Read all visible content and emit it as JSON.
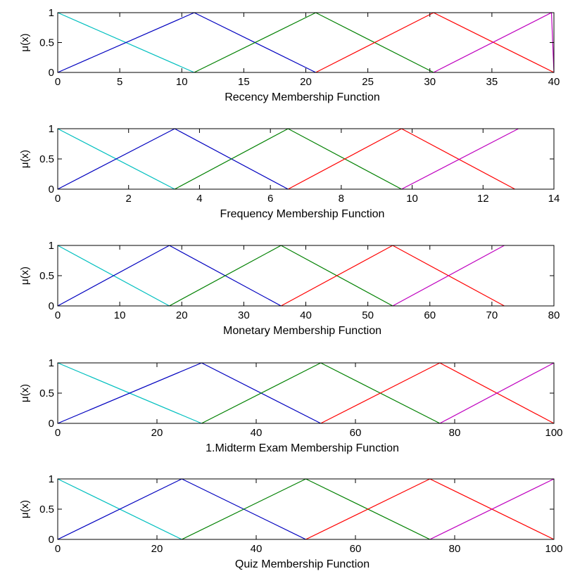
{
  "chart_data": [
    {
      "type": "line",
      "title": "",
      "xlabel": "Recency Membership Function",
      "ylabel": "μ(x)",
      "xlim": [
        0,
        40
      ],
      "ylim": [
        0,
        1
      ],
      "xticks": [
        0,
        5,
        10,
        15,
        20,
        25,
        30,
        35,
        40
      ],
      "xtick_labels": [
        "0",
        "5",
        "10",
        "15",
        "20",
        "25",
        "30",
        "35",
        "40"
      ],
      "yticks": [
        0,
        0.5,
        1
      ],
      "ytick_labels": [
        "0",
        "0.5",
        "1"
      ],
      "grid": false,
      "series": [
        {
          "color": "#00bfbf",
          "x": [
            0,
            11
          ],
          "y": [
            1,
            0
          ]
        },
        {
          "color": "#0000bf",
          "x": [
            0,
            11,
            20.8
          ],
          "y": [
            0,
            1,
            0
          ]
        },
        {
          "color": "#008000",
          "x": [
            11,
            20.8,
            30.3
          ],
          "y": [
            0,
            1,
            0
          ]
        },
        {
          "color": "#ff0000",
          "x": [
            20.8,
            30.3,
            40
          ],
          "y": [
            0,
            1,
            0
          ]
        },
        {
          "color": "#bf00bf",
          "x": [
            30.3,
            39.8,
            40
          ],
          "y": [
            0,
            1,
            0
          ]
        }
      ]
    },
    {
      "type": "line",
      "title": "",
      "xlabel": "Frequency Membership Function",
      "ylabel": "μ(x)",
      "xlim": [
        0,
        14
      ],
      "ylim": [
        0,
        1
      ],
      "xticks": [
        0,
        2,
        4,
        6,
        8,
        10,
        12,
        14
      ],
      "xtick_labels": [
        "0",
        "2",
        "4",
        "6",
        "8",
        "10",
        "12",
        "14"
      ],
      "yticks": [
        0,
        0.5,
        1
      ],
      "ytick_labels": [
        "0",
        "0.5",
        "1"
      ],
      "grid": false,
      "series": [
        {
          "color": "#00bfbf",
          "x": [
            0,
            3.3
          ],
          "y": [
            1,
            0
          ]
        },
        {
          "color": "#0000bf",
          "x": [
            0,
            3.3,
            6.5
          ],
          "y": [
            0,
            1,
            0
          ]
        },
        {
          "color": "#008000",
          "x": [
            3.3,
            6.5,
            9.7
          ],
          "y": [
            0,
            1,
            0
          ]
        },
        {
          "color": "#ff0000",
          "x": [
            6.5,
            9.7,
            12.9
          ],
          "y": [
            0,
            1,
            0
          ]
        },
        {
          "color": "#bf00bf",
          "x": [
            9.7,
            13
          ],
          "y": [
            0,
            1
          ]
        }
      ]
    },
    {
      "type": "line",
      "title": "",
      "xlabel": "Monetary Membership Function",
      "ylabel": "μ(x)",
      "xlim": [
        0,
        80
      ],
      "ylim": [
        0,
        1
      ],
      "xticks": [
        0,
        10,
        20,
        30,
        40,
        50,
        60,
        70,
        80
      ],
      "xtick_labels": [
        "0",
        "10",
        "20",
        "30",
        "40",
        "50",
        "60",
        "70",
        "80"
      ],
      "yticks": [
        0,
        0.5,
        1
      ],
      "ytick_labels": [
        "0",
        "0.5",
        "1"
      ],
      "grid": false,
      "series": [
        {
          "color": "#00bfbf",
          "x": [
            0,
            18
          ],
          "y": [
            1,
            0
          ]
        },
        {
          "color": "#0000bf",
          "x": [
            0,
            18,
            36
          ],
          "y": [
            0,
            1,
            0
          ]
        },
        {
          "color": "#008000",
          "x": [
            18,
            36,
            54
          ],
          "y": [
            0,
            1,
            0
          ]
        },
        {
          "color": "#ff0000",
          "x": [
            36,
            54,
            72
          ],
          "y": [
            0,
            1,
            0
          ]
        },
        {
          "color": "#bf00bf",
          "x": [
            54,
            72
          ],
          "y": [
            0,
            1
          ]
        }
      ]
    },
    {
      "type": "line",
      "title": "",
      "xlabel": "1.Midterm Exam Membership Function",
      "ylabel": "μ(x)",
      "xlim": [
        0,
        100
      ],
      "ylim": [
        0,
        1
      ],
      "xticks": [
        0,
        20,
        40,
        60,
        80,
        100
      ],
      "xtick_labels": [
        "0",
        "20",
        "40",
        "60",
        "80",
        "100"
      ],
      "yticks": [
        0,
        0.5,
        1
      ],
      "ytick_labels": [
        "0",
        "0.5",
        "1"
      ],
      "grid": false,
      "series": [
        {
          "color": "#00bfbf",
          "x": [
            0,
            29
          ],
          "y": [
            1,
            0
          ]
        },
        {
          "color": "#0000bf",
          "x": [
            0,
            29,
            53
          ],
          "y": [
            0,
            1,
            0
          ]
        },
        {
          "color": "#008000",
          "x": [
            29,
            53,
            77
          ],
          "y": [
            0,
            1,
            0
          ]
        },
        {
          "color": "#ff0000",
          "x": [
            53,
            77,
            100
          ],
          "y": [
            0,
            1,
            0
          ]
        },
        {
          "color": "#bf00bf",
          "x": [
            77,
            100
          ],
          "y": [
            0,
            1
          ]
        }
      ]
    },
    {
      "type": "line",
      "title": "",
      "xlabel": "Quiz Membership Function",
      "ylabel": "μ(x)",
      "xlim": [
        0,
        100
      ],
      "ylim": [
        0,
        1
      ],
      "xticks": [
        0,
        20,
        40,
        60,
        80,
        100
      ],
      "xtick_labels": [
        "0",
        "20",
        "40",
        "60",
        "80",
        "100"
      ],
      "yticks": [
        0,
        0.5,
        1
      ],
      "ytick_labels": [
        "0",
        "0.5",
        "1"
      ],
      "grid": false,
      "series": [
        {
          "color": "#00bfbf",
          "x": [
            0,
            25
          ],
          "y": [
            1,
            0
          ]
        },
        {
          "color": "#0000bf",
          "x": [
            0,
            25,
            50
          ],
          "y": [
            0,
            1,
            0
          ]
        },
        {
          "color": "#008000",
          "x": [
            25,
            50,
            75
          ],
          "y": [
            0,
            1,
            0
          ]
        },
        {
          "color": "#ff0000",
          "x": [
            50,
            75,
            100
          ],
          "y": [
            0,
            1,
            0
          ]
        },
        {
          "color": "#bf00bf",
          "x": [
            75,
            100
          ],
          "y": [
            0,
            1
          ]
        }
      ]
    }
  ]
}
